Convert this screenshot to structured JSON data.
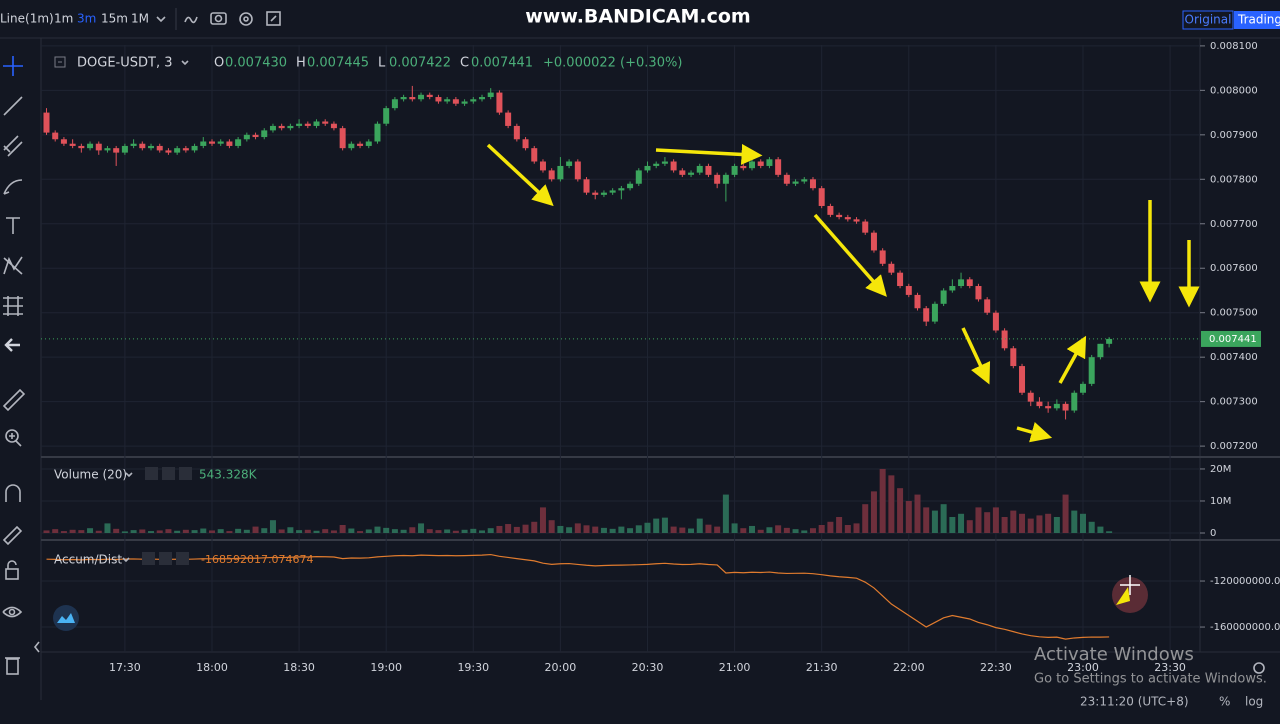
{
  "toolbar": {
    "chart_style": "Line(1m)",
    "intervals": [
      "1m",
      "3m",
      "15m",
      "1M"
    ],
    "watermark": "www.BANDICAM.com",
    "view_tabs": [
      "Original",
      "TradingView"
    ]
  },
  "chart_data": {
    "type": "candlestick",
    "symbol": "DOGE-USDT, 3",
    "legend": [
      {
        "key": "O",
        "value": {
          "value": 0.00743,
          "label": "0.007430"
        }
      },
      {
        "key": "H",
        "value": 0.007445
      },
      {
        "key": "L",
        "value": 0.007422
      },
      {
        "key": "C",
        "value": 0.007441
      }
    ],
    "change": "+0.000022 (+0.30%)",
    "x": [
      "17:03",
      "17:06",
      "17:09",
      "17:12",
      "17:15",
      "17:18",
      "17:21",
      "17:24",
      "17:27",
      "17:30",
      "17:33",
      "17:36",
      "17:39",
      "17:42",
      "17:45",
      "17:48",
      "17:51",
      "17:54",
      "17:57",
      "18:00",
      "18:03",
      "18:06",
      "18:09",
      "18:12",
      "18:15",
      "18:18",
      "18:21",
      "18:24",
      "18:27",
      "18:30",
      "18:33",
      "18:36",
      "18:39",
      "18:42",
      "18:45",
      "18:48",
      "18:51",
      "18:54",
      "18:57",
      "19:00",
      "19:03",
      "19:06",
      "19:09",
      "19:12",
      "19:15",
      "19:18",
      "19:21",
      "19:24",
      "19:27",
      "19:30",
      "19:33",
      "19:36",
      "19:39",
      "19:42",
      "19:45",
      "19:48",
      "19:51",
      "19:54",
      "19:57",
      "20:00",
      "20:03",
      "20:06",
      "20:09",
      "20:12",
      "20:15",
      "20:18",
      "20:21",
      "20:24",
      "20:27",
      "20:30",
      "20:33",
      "20:36",
      "20:39",
      "20:42",
      "20:45",
      "20:48",
      "20:51",
      "20:54",
      "20:57",
      "21:00",
      "21:03",
      "21:06",
      "21:09",
      "21:12",
      "21:15",
      "21:18",
      "21:21",
      "21:24",
      "21:27",
      "21:30",
      "21:33",
      "21:36",
      "21:39",
      "21:42",
      "21:45",
      "21:48",
      "21:51",
      "21:54",
      "21:57",
      "22:00",
      "22:03",
      "22:06",
      "22:09",
      "22:12",
      "22:15",
      "22:18",
      "22:21",
      "22:24",
      "22:27",
      "22:30",
      "22:33",
      "22:36",
      "22:39",
      "22:42",
      "22:45",
      "22:48",
      "22:51",
      "22:54",
      "22:57",
      "23:00",
      "23:03",
      "23:06",
      "23:09"
    ],
    "ohlc": [
      [
        0.00795,
        0.00796,
        0.0079,
        0.007905
      ],
      [
        0.007905,
        0.00791,
        0.007885,
        0.00789
      ],
      [
        0.00789,
        0.007895,
        0.007875,
        0.00788
      ],
      [
        0.00788,
        0.00789,
        0.00787,
        0.007875
      ],
      [
        0.007875,
        0.00788,
        0.00786,
        0.00787
      ],
      [
        0.00787,
        0.007885,
        0.007865,
        0.00788
      ],
      [
        0.00788,
        0.007885,
        0.007855,
        0.007865
      ],
      [
        0.007865,
        0.007875,
        0.00786,
        0.00787
      ],
      [
        0.00787,
        0.007875,
        0.00783,
        0.00786
      ],
      [
        0.00786,
        0.00788,
        0.007855,
        0.007875
      ],
      [
        0.007875,
        0.00789,
        0.00787,
        0.00788
      ],
      [
        0.00788,
        0.007885,
        0.007865,
        0.00787
      ],
      [
        0.00787,
        0.00788,
        0.007865,
        0.007875
      ],
      [
        0.007875,
        0.00788,
        0.00786,
        0.007865
      ],
      [
        0.007865,
        0.00787,
        0.007855,
        0.00786
      ],
      [
        0.00786,
        0.007875,
        0.007855,
        0.00787
      ],
      [
        0.00787,
        0.007875,
        0.00786,
        0.007865
      ],
      [
        0.007865,
        0.00788,
        0.00786,
        0.007875
      ],
      [
        0.007875,
        0.007895,
        0.00787,
        0.007885
      ],
      [
        0.007885,
        0.00789,
        0.007875,
        0.00788
      ],
      [
        0.00788,
        0.00789,
        0.007875,
        0.007885
      ],
      [
        0.007885,
        0.00789,
        0.00787,
        0.007875
      ],
      [
        0.007875,
        0.007895,
        0.00787,
        0.00789
      ],
      [
        0.00789,
        0.007905,
        0.007885,
        0.0079
      ],
      [
        0.0079,
        0.007905,
        0.00789,
        0.007895
      ],
      [
        0.007895,
        0.007915,
        0.00789,
        0.00791
      ],
      [
        0.00791,
        0.007925,
        0.007905,
        0.00792
      ],
      [
        0.00792,
        0.007925,
        0.00791,
        0.007915
      ],
      [
        0.007915,
        0.007925,
        0.00791,
        0.00792
      ],
      [
        0.00792,
        0.007935,
        0.007915,
        0.007925
      ],
      [
        0.007925,
        0.00793,
        0.007915,
        0.00792
      ],
      [
        0.00792,
        0.007935,
        0.007915,
        0.00793
      ],
      [
        0.00793,
        0.007935,
        0.00792,
        0.007925
      ],
      [
        0.007925,
        0.00793,
        0.00791,
        0.007915
      ],
      [
        0.007915,
        0.00792,
        0.007865,
        0.00787
      ],
      [
        0.00787,
        0.007885,
        0.007865,
        0.00788
      ],
      [
        0.00788,
        0.007885,
        0.00787,
        0.007875
      ],
      [
        0.007875,
        0.00789,
        0.00787,
        0.007885
      ],
      [
        0.007885,
        0.00793,
        0.00788,
        0.007925
      ],
      [
        0.007925,
        0.007965,
        0.00792,
        0.00796
      ],
      [
        0.00796,
        0.007985,
        0.007955,
        0.00798
      ],
      [
        0.00798,
        0.00799,
        0.007975,
        0.007985
      ],
      [
        0.007985,
        0.00801,
        0.007975,
        0.00798
      ],
      [
        0.00798,
        0.007995,
        0.007975,
        0.00799
      ],
      [
        0.00799,
        0.007995,
        0.00798,
        0.007985
      ],
      [
        0.007985,
        0.00799,
        0.00797,
        0.007975
      ],
      [
        0.007975,
        0.007985,
        0.00797,
        0.00798
      ],
      [
        0.00798,
        0.007985,
        0.007965,
        0.00797
      ],
      [
        0.00797,
        0.00798,
        0.007965,
        0.007975
      ],
      [
        0.007975,
        0.007985,
        0.00797,
        0.00798
      ],
      [
        0.00798,
        0.00799,
        0.007975,
        0.007985
      ],
      [
        0.007985,
        0.008005,
        0.00798,
        0.007995
      ],
      [
        0.007995,
        0.008,
        0.007945,
        0.00795
      ],
      [
        0.00795,
        0.007955,
        0.007915,
        0.00792
      ],
      [
        0.00792,
        0.007925,
        0.007885,
        0.00789
      ],
      [
        0.00789,
        0.007895,
        0.007865,
        0.00787
      ],
      [
        0.00787,
        0.007875,
        0.007835,
        0.00784
      ],
      [
        0.00784,
        0.007845,
        0.007815,
        0.00782
      ],
      [
        0.00782,
        0.007825,
        0.007795,
        0.0078
      ],
      [
        0.0078,
        0.00785,
        0.007795,
        0.00783
      ],
      [
        0.00783,
        0.007845,
        0.007825,
        0.00784
      ],
      [
        0.00784,
        0.007845,
        0.007795,
        0.0078
      ],
      [
        0.0078,
        0.007805,
        0.007765,
        0.00777
      ],
      [
        0.00777,
        0.007775,
        0.007755,
        0.007765
      ],
      [
        0.007765,
        0.007775,
        0.00776,
        0.00777
      ],
      [
        0.00777,
        0.00778,
        0.007765,
        0.007775
      ],
      [
        0.007775,
        0.007785,
        0.007755,
        0.00778
      ],
      [
        0.00778,
        0.007795,
        0.007775,
        0.00779
      ],
      [
        0.00779,
        0.007825,
        0.007785,
        0.00782
      ],
      [
        0.00782,
        0.00784,
        0.007815,
        0.00783
      ],
      [
        0.00783,
        0.00784,
        0.007825,
        0.007835
      ],
      [
        0.007835,
        0.00785,
        0.00783,
        0.00784
      ],
      [
        0.00784,
        0.007845,
        0.007815,
        0.00782
      ],
      [
        0.00782,
        0.007825,
        0.007805,
        0.00781
      ],
      [
        0.00781,
        0.00782,
        0.007805,
        0.007815
      ],
      [
        0.007815,
        0.007835,
        0.00781,
        0.00783
      ],
      [
        0.00783,
        0.007835,
        0.007805,
        0.00781
      ],
      [
        0.00781,
        0.007815,
        0.00778,
        0.00779
      ],
      [
        0.00779,
        0.007815,
        0.00775,
        0.00781
      ],
      [
        0.00781,
        0.007835,
        0.007805,
        0.00783
      ],
      [
        0.00783,
        0.007835,
        0.00782,
        0.007825
      ],
      [
        0.007825,
        0.007845,
        0.00782,
        0.00784
      ],
      [
        0.00784,
        0.007845,
        0.007825,
        0.00783
      ],
      [
        0.00783,
        0.00785,
        0.007825,
        0.007845
      ],
      [
        0.007845,
        0.00785,
        0.007805,
        0.00781
      ],
      [
        0.00781,
        0.007815,
        0.007785,
        0.00779
      ],
      [
        0.00779,
        0.0078,
        0.007785,
        0.007795
      ],
      [
        0.007795,
        0.007805,
        0.00779,
        0.0078
      ],
      [
        0.0078,
        0.007805,
        0.007775,
        0.00778
      ],
      [
        0.00778,
        0.007785,
        0.007735,
        0.00774
      ],
      [
        0.00774,
        0.007745,
        0.007715,
        0.00772
      ],
      [
        0.00772,
        0.007725,
        0.00771,
        0.007715
      ],
      [
        0.007715,
        0.00772,
        0.007705,
        0.00771
      ],
      [
        0.00771,
        0.007715,
        0.0077,
        0.007705
      ],
      [
        0.007705,
        0.00771,
        0.007675,
        0.00768
      ],
      [
        0.00768,
        0.007685,
        0.007635,
        0.00764
      ],
      [
        0.00764,
        0.007645,
        0.007605,
        0.00761
      ],
      [
        0.00761,
        0.007615,
        0.007585,
        0.00759
      ],
      [
        0.00759,
        0.007595,
        0.007555,
        0.00756
      ],
      [
        0.00756,
        0.007565,
        0.007535,
        0.00754
      ],
      [
        0.00754,
        0.007545,
        0.007505,
        0.00751
      ],
      [
        0.00751,
        0.007515,
        0.00747,
        0.00748
      ],
      [
        0.00748,
        0.007525,
        0.007475,
        0.00752
      ],
      [
        0.00752,
        0.007555,
        0.007515,
        0.00755
      ],
      [
        0.00755,
        0.007575,
        0.007545,
        0.00756
      ],
      [
        0.00756,
        0.00759,
        0.007555,
        0.007575
      ],
      [
        0.007575,
        0.00758,
        0.007555,
        0.00756
      ],
      [
        0.00756,
        0.007565,
        0.007525,
        0.00753
      ],
      [
        0.00753,
        0.007535,
        0.007495,
        0.0075
      ],
      [
        0.0075,
        0.007505,
        0.007455,
        0.00746
      ],
      [
        0.00746,
        0.007465,
        0.007415,
        0.00742
      ],
      [
        0.00742,
        0.007425,
        0.007375,
        0.00738
      ],
      [
        0.00738,
        0.007385,
        0.007315,
        0.00732
      ],
      [
        0.00732,
        0.007325,
        0.00729,
        0.0073
      ],
      [
        0.0073,
        0.00731,
        0.007285,
        0.00729
      ],
      [
        0.00729,
        0.0073,
        0.007275,
        0.007285
      ],
      [
        0.007285,
        0.007305,
        0.00728,
        0.007295
      ],
      [
        0.007295,
        0.0073,
        0.00726,
        0.00728
      ],
      [
        0.00728,
        0.007325,
        0.007275,
        0.00732
      ],
      [
        0.00732,
        0.007345,
        0.007315,
        0.00734
      ],
      [
        0.00734,
        0.007405,
        0.007335,
        0.0074
      ],
      [
        0.0074,
        0.00743,
        0.007395,
        0.00743
      ],
      [
        0.00743,
        0.007445,
        0.007422,
        0.007441
      ]
    ],
    "up_color": "#3ba55d",
    "down_color": "#e0525a",
    "ylim": [
      0.00718,
      0.008102
    ],
    "yticks": [
      {
        "value": 0.0072,
        "label": "0.007200"
      },
      {
        "value": 0.0073,
        "label": "0.007300"
      },
      {
        "value": 0.0074,
        "label": "0.007400"
      },
      {
        "value": 0.0075,
        "label": "0.007500"
      },
      {
        "value": 0.0076,
        "label": "0.007600"
      },
      {
        "value": 0.0077,
        "label": "0.007700"
      },
      {
        "value": 0.0078,
        "label": "0.007800"
      },
      {
        "value": 0.0079,
        "label": "0.007900"
      },
      {
        "value": 0.008,
        "label": "0.008000"
      },
      {
        "value": 0.0081,
        "label": "0.008100"
      }
    ],
    "xticks": [
      "17:30",
      "18:00",
      "18:30",
      "19:00",
      "19:30",
      "20:00",
      "20:30",
      "21:00",
      "21:30",
      "22:00",
      "22:30",
      "23:00",
      "23:30"
    ],
    "grid": true,
    "volume": {
      "name": "Volume (20)",
      "current_label": "543.328K",
      "up_color": "#2b6b56",
      "down_color": "#6e2f3c",
      "values": [
        800000,
        1200000,
        600000,
        1000000,
        900000,
        1500000,
        700000,
        3000000,
        1300000,
        500000,
        900000,
        1100000,
        600000,
        800000,
        1200000,
        700000,
        1000000,
        900000,
        1400000,
        800000,
        1200000,
        600000,
        1300000,
        1000000,
        2000000,
        1500000,
        4000000,
        1100000,
        1800000,
        900000,
        1000000,
        700000,
        1200000,
        800000,
        2500000,
        1400000,
        600000,
        1100000,
        2000000,
        1600000,
        1200000,
        1000000,
        1800000,
        3000000,
        1200000,
        900000,
        1100000,
        700000,
        1000000,
        1300000,
        800000,
        1500000,
        2200000,
        2800000,
        1900000,
        2600000,
        3500000,
        8000000,
        4000000,
        2200000,
        1800000,
        3000000,
        2400000,
        2000000,
        1600000,
        1300000,
        2000000,
        1500000,
        2400000,
        3200000,
        4500000,
        4800000,
        2000000,
        1700000,
        1400000,
        4500000,
        2600000,
        2000000,
        12000000,
        3000000,
        1500000,
        2200000,
        1000000,
        1800000,
        2400000,
        1600000,
        1200000,
        800000,
        1500000,
        2500000,
        3500000,
        5000000,
        2500000,
        3000000,
        9000000,
        13000000,
        20000000,
        18000000,
        14000000,
        10000000,
        12000000,
        8000000,
        7000000,
        9000000,
        5000000,
        6000000,
        4000000,
        8000000,
        6500000,
        8000000,
        5000000,
        7000000,
        6000000,
        4500000,
        5500000,
        6000000,
        5000000,
        12000000,
        7000000,
        6000000,
        3500000,
        2000000,
        543328
      ],
      "ylim": [
        0,
        22800000
      ],
      "yticks": [
        0,
        {
          "value": 10000000,
          "label": "10M"
        },
        {
          "value": 20000000,
          "label": "20M"
        }
      ]
    },
    "accum": {
      "name": "Accum/Dist",
      "color": "#e07b2e",
      "values": [
        -101000000,
        -101200000,
        -101500000,
        -101300000,
        -101600000,
        -101200000,
        -101400000,
        -101000000,
        -101300000,
        -100900000,
        -100800000,
        -101000000,
        -100900000,
        -101100000,
        -101200000,
        -101000000,
        -101100000,
        -100900000,
        -100600000,
        -100700000,
        -100500000,
        -100700000,
        -100300000,
        -100100000,
        -100200000,
        -99800000,
        -99500000,
        -99600000,
        -99300000,
        -99000000,
        -99100000,
        -98800000,
        -98900000,
        -99100000,
        -100500000,
        -100000000,
        -100100000,
        -99800000,
        -99000000,
        -98500000,
        -98000000,
        -97800000,
        -98000000,
        -97500000,
        -97700000,
        -97900000,
        -97800000,
        -98000000,
        -97900000,
        -97700000,
        -97500000,
        -97000000,
        -98500000,
        -99500000,
        -100500000,
        -101500000,
        -102500000,
        -104500000,
        -105500000,
        -105000000,
        -104800000,
        -105600000,
        -106300000,
        -106800000,
        -106500000,
        -106300000,
        -106200000,
        -106000000,
        -105800000,
        -105500000,
        -105000000,
        -104600000,
        -105200000,
        -105600000,
        -105500000,
        -105000000,
        -105600000,
        -106000000,
        -113000000,
        -112500000,
        -112800000,
        -112400000,
        -112600000,
        -112200000,
        -113000000,
        -113400000,
        -113300000,
        -113200000,
        -113600000,
        -114500000,
        -115500000,
        -116300000,
        -116800000,
        -117500000,
        -121000000,
        -126000000,
        -133000000,
        -140000000,
        -145000000,
        -150000000,
        -155000000,
        -160000000,
        -156000000,
        -152000000,
        -150000000,
        -151500000,
        -153000000,
        -156000000,
        -158000000,
        -160500000,
        -162000000,
        -164000000,
        -166000000,
        -167500000,
        -168500000,
        -169000000,
        -168800000,
        -170500000,
        -169500000,
        -169000000,
        -168700000,
        -168800000,
        -168592017.074674
      ],
      "ylim": [
        -181700000,
        -85200000
      ],
      "yticks": [
        {
          "value": -120000000,
          "label": "-120000000.00"
        },
        {
          "value": -160000000,
          "label": "-160000000.00"
        }
      ]
    }
  },
  "footer": {
    "clock": "23:11:20 (UTC+8)",
    "percent": "%",
    "log": "log"
  },
  "overlay": {
    "activate_title": "Activate Windows",
    "activate_text": "Go to Settings to activate Windows."
  }
}
